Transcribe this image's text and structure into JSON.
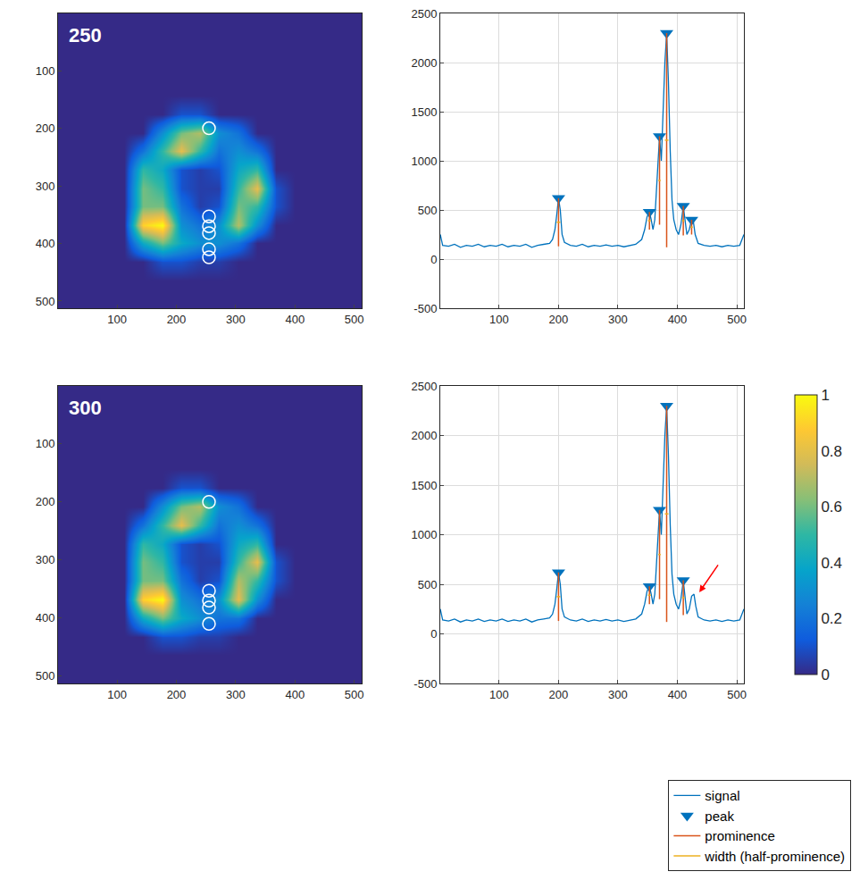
{
  "chart_data": [
    {
      "type": "heatmap",
      "label": "250",
      "x": [
        16,
        48,
        80,
        112,
        144,
        176,
        208,
        240,
        272,
        304,
        336,
        368,
        400,
        432,
        464,
        496
      ],
      "y": [
        16,
        48,
        80,
        112,
        144,
        176,
        208,
        240,
        272,
        304,
        336,
        368,
        400,
        432,
        464,
        496
      ],
      "z": [
        [
          0,
          0,
          0,
          0,
          0,
          0,
          0,
          0,
          0,
          0,
          0,
          0,
          0,
          0,
          0,
          0
        ],
        [
          0,
          0,
          0,
          0,
          0,
          0,
          0,
          0,
          0,
          0,
          0,
          0,
          0,
          0,
          0,
          0
        ],
        [
          0,
          0,
          0,
          0,
          0,
          0,
          0,
          0,
          0,
          0,
          0,
          0,
          0,
          0,
          0,
          0
        ],
        [
          0,
          0,
          0,
          0,
          0,
          0,
          0,
          0,
          0,
          0,
          0,
          0,
          0,
          0,
          0,
          0
        ],
        [
          0,
          0,
          0,
          0,
          0,
          0,
          0,
          0,
          0,
          0,
          0,
          0,
          0,
          0,
          0,
          0
        ],
        [
          0,
          0,
          0,
          0,
          0,
          0,
          0.1,
          0.1,
          0,
          0,
          0,
          0,
          0,
          0,
          0,
          0
        ],
        [
          0,
          0,
          0,
          0,
          0,
          0.3,
          0.6,
          0.7,
          0.3,
          0.2,
          0,
          0,
          0,
          0,
          0,
          0
        ],
        [
          0,
          0,
          0,
          0,
          0.2,
          0.5,
          0.8,
          0.5,
          0.2,
          0.3,
          0.2,
          0,
          0,
          0,
          0,
          0
        ],
        [
          0,
          0,
          0,
          0,
          0.5,
          0.4,
          0.1,
          0.05,
          0.1,
          0.4,
          0.5,
          0,
          0,
          0,
          0,
          0
        ],
        [
          0,
          0,
          0,
          0,
          0.6,
          0.5,
          0.1,
          0.05,
          0.05,
          0.5,
          0.8,
          0.1,
          0,
          0,
          0,
          0
        ],
        [
          0,
          0,
          0,
          0,
          0.6,
          0.6,
          0.2,
          0.05,
          0.1,
          0.6,
          0.5,
          0.1,
          0,
          0,
          0,
          0
        ],
        [
          0,
          0,
          0,
          0,
          0.9,
          1,
          0.3,
          0.2,
          0.3,
          0.7,
          0.3,
          0,
          0,
          0,
          0,
          0
        ],
        [
          0,
          0,
          0,
          0,
          0.4,
          0.6,
          0.4,
          0.3,
          0.3,
          0.2,
          0,
          0,
          0,
          0,
          0,
          0
        ],
        [
          0,
          0,
          0,
          0,
          0,
          0.1,
          0.1,
          0.05,
          0.05,
          0,
          0,
          0,
          0,
          0,
          0,
          0
        ],
        [
          0,
          0,
          0,
          0,
          0,
          0,
          0,
          0,
          0,
          0,
          0,
          0,
          0,
          0,
          0,
          0
        ],
        [
          0,
          0,
          0,
          0,
          0,
          0,
          0,
          0,
          0,
          0,
          0,
          0,
          0,
          0,
          0,
          0
        ]
      ],
      "zlim": [
        0,
        1
      ],
      "colorbar_ticks": [
        0,
        0.2,
        0.4,
        0.6,
        0.8,
        1
      ],
      "xlim": [
        0.5,
        512.5
      ],
      "ylim": [
        512.5,
        0.5
      ],
      "xticks": [
        100,
        200,
        300,
        400,
        500
      ],
      "yticks": [
        100,
        200,
        300,
        400,
        500
      ],
      "circles": {
        "x": [
          255,
          255,
          255,
          255,
          255,
          255
        ],
        "y": [
          200,
          353,
          370,
          382,
          410,
          424
        ]
      }
    },
    {
      "type": "line",
      "xlim": [
        1,
        512
      ],
      "ylim": [
        -500,
        2500
      ],
      "xticks": [
        100,
        200,
        300,
        400,
        500
      ],
      "yticks": [
        -500,
        0,
        500,
        1000,
        1500,
        2000,
        2500
      ],
      "grid": true,
      "series": [
        {
          "name": "signal",
          "color": "#0072BD",
          "x": [
            1,
            5,
            15,
            25,
            35,
            45,
            55,
            65,
            75,
            85,
            95,
            105,
            115,
            125,
            135,
            145,
            155,
            165,
            175,
            185,
            190,
            194,
            197,
            200,
            203,
            206,
            210,
            220,
            230,
            240,
            250,
            260,
            270,
            280,
            290,
            300,
            310,
            320,
            330,
            340,
            345,
            349,
            353,
            356,
            359,
            362,
            366,
            370,
            373,
            376,
            379,
            382,
            385,
            388,
            391,
            394,
            398,
            402,
            406,
            410,
            413,
            416,
            420,
            424,
            427,
            430,
            435,
            445,
            455,
            465,
            475,
            485,
            495,
            505,
            512
          ],
          "values": [
            250,
            140,
            130,
            150,
            120,
            140,
            130,
            150,
            125,
            140,
            130,
            150,
            125,
            140,
            130,
            150,
            120,
            140,
            150,
            160,
            200,
            300,
            450,
            620,
            500,
            250,
            170,
            140,
            130,
            150,
            125,
            140,
            130,
            145,
            130,
            140,
            125,
            140,
            150,
            200,
            300,
            430,
            480,
            400,
            300,
            400,
            800,
            1250,
            1000,
            1500,
            2000,
            2300,
            1800,
            1100,
            600,
            400,
            300,
            250,
            350,
            540,
            400,
            250,
            300,
            400,
            380,
            250,
            160,
            140,
            130,
            140,
            125,
            140,
            130,
            140,
            250
          ]
        },
        {
          "name": "peak",
          "color": "#0072BD",
          "marker": "triangle-down",
          "x": [
            200,
            353,
            370,
            382,
            410,
            424
          ],
          "values": [
            620,
            480,
            1250,
            2300,
            540,
            400
          ]
        },
        {
          "name": "prominence",
          "color": "#D95319",
          "x": [
            200,
            353,
            370,
            382,
            410,
            424
          ],
          "values": [
            490,
            180,
            900,
            2180,
            300,
            150
          ]
        },
        {
          "name": "width (half-prominence)",
          "color": "#EDB120",
          "x": [
            200,
            353,
            370,
            382,
            410,
            424
          ],
          "values": [
            6,
            5,
            4,
            6,
            4,
            4
          ]
        }
      ]
    },
    {
      "type": "heatmap",
      "label": "300",
      "x": [
        16,
        48,
        80,
        112,
        144,
        176,
        208,
        240,
        272,
        304,
        336,
        368,
        400,
        432,
        464,
        496
      ],
      "y": [
        16,
        48,
        80,
        112,
        144,
        176,
        208,
        240,
        272,
        304,
        336,
        368,
        400,
        432,
        464,
        496
      ],
      "z": [
        [
          0,
          0,
          0,
          0,
          0,
          0,
          0,
          0,
          0,
          0,
          0,
          0,
          0,
          0,
          0,
          0
        ],
        [
          0,
          0,
          0,
          0,
          0,
          0,
          0,
          0,
          0,
          0,
          0,
          0,
          0,
          0,
          0,
          0
        ],
        [
          0,
          0,
          0,
          0,
          0,
          0,
          0,
          0,
          0,
          0,
          0,
          0,
          0,
          0,
          0,
          0
        ],
        [
          0,
          0,
          0,
          0,
          0,
          0,
          0,
          0,
          0,
          0,
          0,
          0,
          0,
          0,
          0,
          0
        ],
        [
          0,
          0,
          0,
          0,
          0,
          0,
          0,
          0,
          0,
          0,
          0,
          0,
          0,
          0,
          0,
          0
        ],
        [
          0,
          0,
          0,
          0,
          0,
          0,
          0.1,
          0.1,
          0,
          0,
          0,
          0,
          0,
          0,
          0,
          0
        ],
        [
          0,
          0,
          0,
          0,
          0,
          0.3,
          0.6,
          0.7,
          0.3,
          0.2,
          0,
          0,
          0,
          0,
          0,
          0
        ],
        [
          0,
          0,
          0,
          0,
          0.2,
          0.5,
          0.8,
          0.5,
          0.2,
          0.3,
          0.2,
          0,
          0,
          0,
          0,
          0
        ],
        [
          0,
          0,
          0,
          0,
          0.5,
          0.4,
          0.1,
          0.05,
          0.1,
          0.4,
          0.5,
          0,
          0,
          0,
          0,
          0
        ],
        [
          0,
          0,
          0,
          0,
          0.6,
          0.5,
          0.1,
          0.05,
          0.05,
          0.5,
          0.8,
          0.1,
          0,
          0,
          0,
          0
        ],
        [
          0,
          0,
          0,
          0,
          0.6,
          0.6,
          0.2,
          0.05,
          0.1,
          0.7,
          0.5,
          0.1,
          0,
          0,
          0,
          0
        ],
        [
          0,
          0,
          0,
          0,
          0.9,
          1,
          0.3,
          0.2,
          0.3,
          0.8,
          0.3,
          0,
          0,
          0,
          0,
          0
        ],
        [
          0,
          0,
          0,
          0,
          0.4,
          0.6,
          0.4,
          0.3,
          0.2,
          0.2,
          0,
          0,
          0,
          0,
          0,
          0
        ],
        [
          0,
          0,
          0,
          0,
          0,
          0.1,
          0.1,
          0.05,
          0.05,
          0,
          0,
          0,
          0,
          0,
          0,
          0
        ],
        [
          0,
          0,
          0,
          0,
          0,
          0,
          0,
          0,
          0,
          0,
          0,
          0,
          0,
          0,
          0,
          0
        ],
        [
          0,
          0,
          0,
          0,
          0,
          0,
          0,
          0,
          0,
          0,
          0,
          0,
          0,
          0,
          0,
          0
        ]
      ],
      "zlim": [
        0,
        1
      ],
      "colorbar_ticks": [
        0,
        0.2,
        0.4,
        0.6,
        0.8,
        1
      ],
      "xlim": [
        0.5,
        512.5
      ],
      "ylim": [
        512.5,
        0.5
      ],
      "xticks": [
        100,
        200,
        300,
        400,
        500
      ],
      "yticks": [
        100,
        200,
        300,
        400,
        500
      ],
      "circles": {
        "x": [
          255,
          255,
          255,
          255,
          255
        ],
        "y": [
          200,
          353,
          370,
          382,
          410
        ]
      }
    },
    {
      "type": "line",
      "xlim": [
        1,
        512
      ],
      "ylim": [
        -500,
        2500
      ],
      "xticks": [
        100,
        200,
        300,
        400,
        500
      ],
      "yticks": [
        -500,
        0,
        500,
        1000,
        1500,
        2000,
        2500
      ],
      "grid": true,
      "legend": "lower right",
      "arrow": {
        "x": 437,
        "y": 420,
        "color": "#ff0000"
      },
      "series": [
        {
          "name": "signal",
          "color": "#0072BD",
          "x": [
            1,
            5,
            15,
            25,
            35,
            45,
            55,
            65,
            75,
            85,
            95,
            105,
            115,
            125,
            135,
            145,
            155,
            165,
            175,
            185,
            190,
            194,
            197,
            200,
            203,
            206,
            210,
            220,
            230,
            240,
            250,
            260,
            270,
            280,
            290,
            300,
            310,
            320,
            330,
            340,
            345,
            349,
            353,
            356,
            359,
            362,
            366,
            370,
            373,
            376,
            379,
            382,
            385,
            388,
            391,
            394,
            398,
            402,
            406,
            410,
            413,
            416,
            420,
            424,
            428,
            431,
            435,
            445,
            455,
            465,
            475,
            485,
            495,
            505,
            512
          ],
          "values": [
            250,
            140,
            130,
            150,
            120,
            140,
            130,
            150,
            125,
            140,
            130,
            150,
            125,
            140,
            130,
            150,
            120,
            140,
            150,
            160,
            200,
            300,
            450,
            620,
            500,
            250,
            170,
            140,
            130,
            150,
            125,
            140,
            130,
            145,
            130,
            140,
            125,
            140,
            150,
            200,
            300,
            430,
            480,
            400,
            300,
            400,
            800,
            1250,
            1000,
            1500,
            2000,
            2300,
            1800,
            1100,
            600,
            400,
            300,
            250,
            350,
            540,
            380,
            200,
            250,
            380,
            400,
            280,
            170,
            140,
            130,
            140,
            125,
            140,
            130,
            140,
            250
          ]
        },
        {
          "name": "peak",
          "color": "#0072BD",
          "marker": "triangle-down",
          "x": [
            200,
            353,
            370,
            382,
            410
          ],
          "values": [
            620,
            480,
            1250,
            2300,
            540
          ]
        },
        {
          "name": "prominence",
          "color": "#D95319",
          "x": [
            200,
            353,
            370,
            382,
            410
          ],
          "values": [
            490,
            180,
            900,
            2180,
            350
          ]
        },
        {
          "name": "width (half-prominence)",
          "color": "#EDB120",
          "x": [
            200,
            353,
            370,
            382,
            410
          ],
          "values": [
            6,
            5,
            4,
            6,
            4
          ]
        }
      ]
    }
  ]
}
